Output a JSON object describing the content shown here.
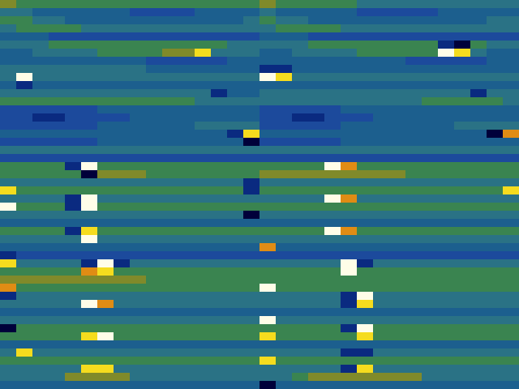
{
  "chart_data": {
    "type": "heatmap",
    "tick_labels": false,
    "cells": [
      [
        6,
        5,
        5,
        5,
        5,
        5,
        5,
        5,
        5,
        5,
        5,
        5,
        5,
        5,
        5,
        5,
        6,
        5,
        5,
        5,
        5,
        5,
        4,
        4,
        4,
        4,
        4,
        4,
        4,
        4,
        4,
        4
      ],
      [
        4,
        4,
        3,
        3,
        3,
        3,
        3,
        3,
        2,
        2,
        2,
        2,
        3,
        3,
        3,
        3,
        4,
        3,
        3,
        3,
        3,
        3,
        2,
        2,
        2,
        2,
        2,
        3,
        3,
        3,
        3,
        3
      ],
      [
        5,
        5,
        4,
        4,
        3,
        3,
        3,
        3,
        3,
        3,
        3,
        3,
        3,
        3,
        3,
        4,
        5,
        4,
        4,
        3,
        3,
        3,
        3,
        3,
        3,
        3,
        3,
        3,
        3,
        3,
        4,
        4
      ],
      [
        4,
        5,
        5,
        5,
        5,
        4,
        4,
        4,
        4,
        4,
        4,
        4,
        4,
        4,
        4,
        4,
        4,
        5,
        5,
        5,
        5,
        4,
        4,
        4,
        4,
        4,
        4,
        4,
        4,
        4,
        4,
        4
      ],
      [
        3,
        3,
        3,
        2,
        2,
        2,
        2,
        2,
        2,
        2,
        2,
        2,
        2,
        2,
        2,
        2,
        3,
        3,
        3,
        2,
        2,
        2,
        2,
        2,
        2,
        2,
        2,
        2,
        2,
        2,
        2,
        2
      ],
      [
        4,
        4,
        4,
        5,
        5,
        5,
        5,
        5,
        5,
        5,
        5,
        5,
        5,
        5,
        4,
        4,
        4,
        4,
        4,
        5,
        5,
        5,
        5,
        5,
        5,
        5,
        5,
        1,
        0,
        5,
        4,
        4
      ],
      [
        3,
        3,
        4,
        4,
        4,
        4,
        5,
        5,
        5,
        5,
        6,
        6,
        8,
        4,
        4,
        4,
        3,
        3,
        4,
        4,
        4,
        4,
        5,
        5,
        5,
        5,
        5,
        9,
        8,
        4,
        3,
        3
      ],
      [
        3,
        3,
        3,
        3,
        3,
        3,
        3,
        3,
        3,
        2,
        2,
        2,
        2,
        2,
        3,
        3,
        3,
        3,
        3,
        3,
        3,
        3,
        3,
        3,
        3,
        2,
        2,
        2,
        2,
        2,
        3,
        3
      ],
      [
        4,
        4,
        4,
        4,
        4,
        4,
        4,
        4,
        4,
        3,
        3,
        3,
        3,
        3,
        3,
        3,
        1,
        1,
        3,
        3,
        3,
        3,
        3,
        3,
        3,
        3,
        3,
        3,
        3,
        3,
        3,
        3
      ],
      [
        4,
        9,
        4,
        4,
        4,
        4,
        4,
        4,
        4,
        4,
        4,
        4,
        4,
        4,
        4,
        4,
        9,
        8,
        4,
        4,
        4,
        4,
        4,
        4,
        4,
        4,
        4,
        4,
        4,
        4,
        4,
        4
      ],
      [
        3,
        1,
        3,
        3,
        3,
        3,
        3,
        3,
        3,
        3,
        3,
        3,
        3,
        3,
        3,
        3,
        3,
        3,
        3,
        3,
        3,
        3,
        3,
        3,
        3,
        3,
        3,
        3,
        3,
        3,
        3,
        3
      ],
      [
        4,
        4,
        4,
        4,
        4,
        4,
        4,
        4,
        4,
        4,
        4,
        4,
        4,
        1,
        3,
        3,
        4,
        4,
        4,
        4,
        4,
        4,
        4,
        4,
        4,
        4,
        4,
        4,
        4,
        1,
        4,
        4
      ],
      [
        5,
        5,
        5,
        5,
        5,
        5,
        5,
        5,
        5,
        5,
        5,
        5,
        4,
        4,
        4,
        4,
        4,
        4,
        4,
        4,
        4,
        4,
        4,
        4,
        4,
        4,
        5,
        5,
        5,
        5,
        5,
        4
      ],
      [
        2,
        2,
        2,
        2,
        2,
        2,
        3,
        3,
        3,
        3,
        3,
        3,
        3,
        3,
        3,
        3,
        2,
        2,
        2,
        2,
        2,
        3,
        3,
        3,
        3,
        3,
        3,
        3,
        3,
        3,
        3,
        3
      ],
      [
        2,
        2,
        1,
        1,
        2,
        2,
        2,
        2,
        3,
        3,
        3,
        3,
        3,
        3,
        3,
        3,
        2,
        2,
        1,
        1,
        2,
        2,
        2,
        3,
        3,
        3,
        3,
        3,
        3,
        3,
        3,
        3
      ],
      [
        2,
        2,
        2,
        2,
        2,
        2,
        3,
        3,
        3,
        3,
        3,
        3,
        4,
        4,
        4,
        4,
        2,
        2,
        2,
        2,
        2,
        3,
        3,
        3,
        3,
        3,
        3,
        3,
        4,
        4,
        4,
        4
      ],
      [
        3,
        3,
        3,
        3,
        3,
        3,
        3,
        3,
        3,
        3,
        3,
        3,
        3,
        3,
        1,
        8,
        3,
        3,
        3,
        3,
        3,
        3,
        3,
        3,
        3,
        3,
        3,
        3,
        3,
        3,
        0,
        7
      ],
      [
        2,
        2,
        2,
        2,
        2,
        2,
        3,
        3,
        3,
        3,
        3,
        3,
        3,
        3,
        3,
        0,
        2,
        2,
        2,
        2,
        2,
        3,
        3,
        3,
        3,
        3,
        3,
        3,
        3,
        3,
        3,
        3
      ],
      [
        4,
        4,
        4,
        4,
        4,
        4,
        4,
        4,
        4,
        4,
        4,
        4,
        4,
        4,
        4,
        4,
        4,
        4,
        4,
        4,
        4,
        4,
        4,
        4,
        4,
        4,
        4,
        4,
        4,
        4,
        4,
        4
      ],
      [
        2,
        2,
        2,
        2,
        2,
        2,
        2,
        2,
        2,
        2,
        2,
        2,
        2,
        2,
        2,
        2,
        2,
        2,
        2,
        2,
        2,
        2,
        2,
        2,
        2,
        2,
        2,
        2,
        2,
        2,
        2,
        2
      ],
      [
        5,
        5,
        5,
        5,
        1,
        9,
        5,
        5,
        5,
        5,
        5,
        5,
        5,
        5,
        5,
        5,
        5,
        5,
        5,
        5,
        9,
        7,
        5,
        5,
        5,
        5,
        5,
        5,
        5,
        5,
        5,
        5
      ],
      [
        5,
        5,
        5,
        5,
        5,
        0,
        6,
        6,
        6,
        5,
        5,
        5,
        5,
        5,
        5,
        5,
        6,
        6,
        6,
        6,
        6,
        6,
        6,
        6,
        6,
        5,
        5,
        5,
        5,
        5,
        5,
        5
      ],
      [
        4,
        4,
        4,
        4,
        4,
        4,
        4,
        4,
        4,
        4,
        4,
        4,
        4,
        4,
        4,
        1,
        4,
        4,
        4,
        4,
        4,
        4,
        4,
        4,
        4,
        4,
        4,
        4,
        4,
        4,
        4,
        4
      ],
      [
        8,
        5,
        5,
        5,
        5,
        5,
        5,
        5,
        5,
        5,
        5,
        5,
        5,
        5,
        5,
        1,
        5,
        5,
        5,
        5,
        5,
        5,
        5,
        5,
        5,
        5,
        5,
        5,
        5,
        5,
        5,
        8
      ],
      [
        4,
        4,
        4,
        4,
        1,
        9,
        4,
        4,
        4,
        4,
        4,
        4,
        4,
        4,
        4,
        4,
        4,
        4,
        4,
        4,
        9,
        7,
        4,
        4,
        4,
        4,
        4,
        4,
        4,
        4,
        4,
        4
      ],
      [
        9,
        5,
        5,
        5,
        1,
        9,
        5,
        5,
        5,
        5,
        5,
        5,
        5,
        5,
        5,
        5,
        5,
        5,
        5,
        5,
        5,
        5,
        5,
        5,
        5,
        5,
        5,
        5,
        5,
        5,
        5,
        5
      ],
      [
        4,
        4,
        4,
        4,
        4,
        4,
        4,
        4,
        4,
        4,
        4,
        4,
        4,
        4,
        4,
        0,
        4,
        4,
        4,
        4,
        4,
        4,
        4,
        4,
        4,
        4,
        4,
        4,
        4,
        4,
        4,
        4
      ],
      [
        3,
        3,
        3,
        3,
        3,
        3,
        3,
        3,
        3,
        3,
        3,
        3,
        3,
        3,
        3,
        3,
        3,
        3,
        3,
        3,
        3,
        3,
        3,
        3,
        3,
        3,
        3,
        3,
        3,
        3,
        3,
        3
      ],
      [
        5,
        5,
        5,
        5,
        1,
        8,
        5,
        5,
        5,
        5,
        5,
        5,
        5,
        5,
        5,
        5,
        5,
        5,
        5,
        5,
        9,
        7,
        5,
        5,
        5,
        5,
        5,
        5,
        5,
        5,
        5,
        5
      ],
      [
        4,
        4,
        4,
        4,
        4,
        9,
        4,
        4,
        4,
        4,
        4,
        4,
        4,
        4,
        4,
        4,
        4,
        4,
        4,
        4,
        4,
        4,
        4,
        4,
        4,
        4,
        4,
        4,
        4,
        4,
        4,
        4
      ],
      [
        3,
        3,
        3,
        3,
        3,
        3,
        3,
        3,
        3,
        3,
        3,
        3,
        3,
        3,
        3,
        3,
        7,
        3,
        3,
        3,
        3,
        3,
        3,
        3,
        3,
        3,
        3,
        3,
        3,
        3,
        3,
        3
      ],
      [
        1,
        2,
        2,
        2,
        2,
        2,
        2,
        2,
        2,
        2,
        2,
        2,
        2,
        2,
        2,
        2,
        2,
        2,
        2,
        2,
        2,
        2,
        2,
        2,
        2,
        2,
        2,
        2,
        2,
        2,
        2,
        2
      ],
      [
        8,
        4,
        4,
        4,
        4,
        1,
        9,
        1,
        4,
        4,
        4,
        4,
        4,
        4,
        4,
        4,
        4,
        4,
        4,
        4,
        4,
        9,
        1,
        4,
        4,
        4,
        4,
        4,
        4,
        4,
        4,
        4
      ],
      [
        5,
        5,
        5,
        5,
        5,
        7,
        8,
        5,
        5,
        5,
        5,
        5,
        5,
        5,
        5,
        5,
        5,
        5,
        5,
        5,
        5,
        9,
        5,
        5,
        5,
        5,
        5,
        5,
        5,
        5,
        5,
        5
      ],
      [
        6,
        6,
        6,
        6,
        6,
        6,
        6,
        6,
        6,
        5,
        5,
        5,
        5,
        5,
        5,
        5,
        5,
        5,
        5,
        5,
        5,
        5,
        5,
        5,
        5,
        5,
        5,
        5,
        5,
        5,
        5,
        5
      ],
      [
        7,
        5,
        5,
        5,
        5,
        5,
        5,
        5,
        5,
        5,
        5,
        5,
        5,
        5,
        5,
        5,
        9,
        5,
        5,
        5,
        5,
        5,
        5,
        5,
        5,
        5,
        5,
        5,
        5,
        5,
        5,
        5
      ],
      [
        1,
        4,
        4,
        4,
        4,
        4,
        4,
        4,
        4,
        4,
        4,
        4,
        4,
        4,
        4,
        4,
        4,
        4,
        4,
        4,
        4,
        1,
        9,
        4,
        4,
        4,
        4,
        4,
        4,
        4,
        4,
        4
      ],
      [
        4,
        4,
        4,
        4,
        4,
        9,
        7,
        4,
        4,
        4,
        4,
        4,
        4,
        4,
        4,
        4,
        4,
        4,
        4,
        4,
        4,
        1,
        8,
        4,
        4,
        4,
        4,
        4,
        4,
        4,
        4,
        4
      ],
      [
        3,
        3,
        3,
        3,
        3,
        3,
        3,
        3,
        3,
        3,
        3,
        3,
        3,
        3,
        3,
        3,
        3,
        3,
        3,
        3,
        3,
        3,
        3,
        3,
        3,
        3,
        3,
        3,
        3,
        3,
        3,
        3
      ],
      [
        4,
        4,
        4,
        4,
        4,
        4,
        4,
        4,
        4,
        4,
        4,
        4,
        4,
        4,
        4,
        4,
        9,
        4,
        4,
        4,
        4,
        4,
        4,
        4,
        4,
        4,
        4,
        4,
        4,
        4,
        4,
        4
      ],
      [
        0,
        5,
        5,
        5,
        5,
        5,
        5,
        5,
        5,
        5,
        5,
        5,
        5,
        5,
        5,
        5,
        5,
        5,
        5,
        5,
        5,
        1,
        9,
        5,
        5,
        5,
        5,
        5,
        5,
        5,
        5,
        5
      ],
      [
        5,
        5,
        5,
        5,
        5,
        8,
        9,
        5,
        5,
        5,
        5,
        5,
        5,
        5,
        5,
        5,
        8,
        5,
        5,
        5,
        5,
        5,
        8,
        5,
        5,
        5,
        5,
        5,
        5,
        5,
        5,
        5
      ],
      [
        3,
        3,
        3,
        3,
        3,
        3,
        3,
        3,
        3,
        3,
        3,
        3,
        3,
        3,
        3,
        3,
        3,
        3,
        3,
        3,
        3,
        3,
        3,
        3,
        3,
        3,
        3,
        3,
        3,
        3,
        3,
        3
      ],
      [
        4,
        8,
        4,
        4,
        4,
        4,
        4,
        4,
        4,
        4,
        4,
        4,
        4,
        4,
        4,
        4,
        4,
        4,
        4,
        4,
        4,
        1,
        1,
        4,
        4,
        4,
        4,
        4,
        4,
        4,
        4,
        4
      ],
      [
        5,
        5,
        5,
        5,
        5,
        5,
        5,
        5,
        5,
        5,
        5,
        5,
        5,
        5,
        5,
        5,
        8,
        5,
        5,
        5,
        5,
        5,
        5,
        5,
        5,
        5,
        5,
        5,
        5,
        5,
        5,
        5
      ],
      [
        4,
        4,
        4,
        4,
        4,
        8,
        8,
        4,
        4,
        4,
        4,
        4,
        4,
        4,
        4,
        4,
        4,
        4,
        4,
        4,
        4,
        1,
        8,
        4,
        4,
        4,
        4,
        4,
        4,
        4,
        4,
        4
      ],
      [
        4,
        4,
        4,
        4,
        6,
        6,
        6,
        6,
        4,
        4,
        4,
        4,
        4,
        4,
        4,
        4,
        4,
        4,
        5,
        6,
        6,
        6,
        6,
        6,
        6,
        6,
        4,
        4,
        4,
        4,
        4,
        4
      ],
      [
        3,
        3,
        3,
        3,
        3,
        3,
        3,
        3,
        3,
        3,
        3,
        3,
        3,
        3,
        3,
        3,
        0,
        3,
        3,
        3,
        3,
        3,
        3,
        3,
        3,
        3,
        3,
        3,
        3,
        3,
        3,
        3
      ]
    ]
  }
}
